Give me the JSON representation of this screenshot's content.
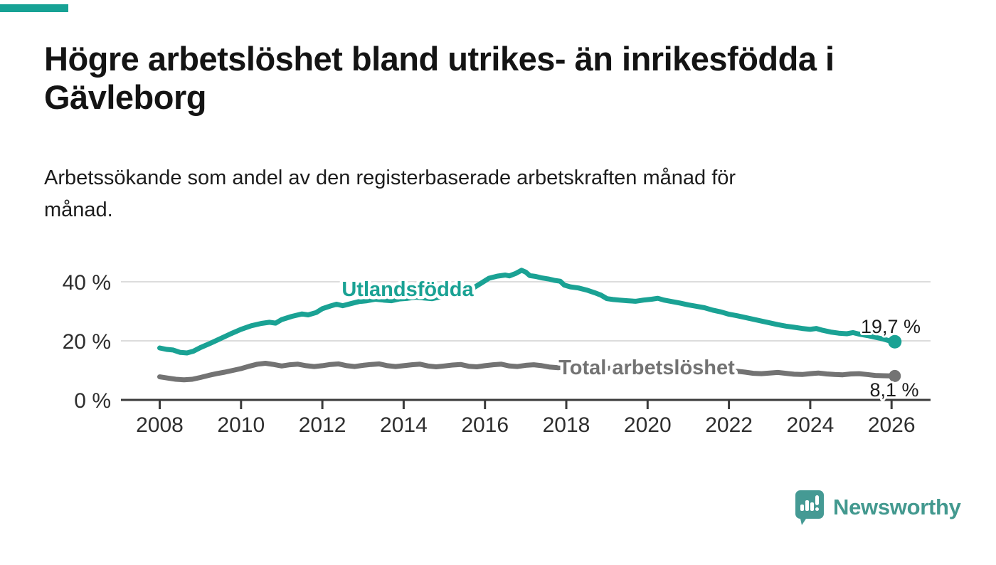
{
  "page": {
    "title": "Högre arbetslöshet bland utrikes- än inrikesfödda i\nGävleborg",
    "subtitle": "Arbetssökande som andel av den registerbaserade arbetskraften månad för\nmånad.",
    "accent_color": "#17A295",
    "background_color": "#FFFFFF"
  },
  "branding": {
    "logo_text": "Newsworthy",
    "logo_color": "#43998F",
    "logo_icon": "speech-bubble-bar-chart-icon"
  },
  "chart_data": {
    "type": "line",
    "x_unit": "decimal-year, monthly observations",
    "xlim": [
      2007.85,
      2026.55
    ],
    "ylim": [
      0,
      45
    ],
    "grid": "horizontal",
    "gridline_color": "#D7D7D7",
    "axis_color": "#3B3B3B",
    "tick_label_color": "#2E2E2E",
    "yticks": [
      {
        "value": 0,
        "label": "0 %"
      },
      {
        "value": 20,
        "label": "20 %"
      },
      {
        "value": 40,
        "label": "40 %"
      }
    ],
    "xticks": [
      {
        "value": 2008,
        "label": "2008"
      },
      {
        "value": 2010,
        "label": "2010"
      },
      {
        "value": 2012,
        "label": "2012"
      },
      {
        "value": 2014,
        "label": "2014"
      },
      {
        "value": 2016,
        "label": "2016"
      },
      {
        "value": 2018,
        "label": "2018"
      },
      {
        "value": 2020,
        "label": "2020"
      },
      {
        "value": 2022,
        "label": "2022"
      },
      {
        "value": 2024,
        "label": "2024"
      },
      {
        "value": 2026,
        "label": "2026"
      }
    ],
    "series": [
      {
        "name": "Utlandsfödda",
        "color": "#1AA294",
        "end_value": 19.7,
        "end_value_label": "19,7 %",
        "points": [
          [
            2008.0,
            17.6
          ],
          [
            2008.17,
            17.1
          ],
          [
            2008.33,
            16.9
          ],
          [
            2008.5,
            16.1
          ],
          [
            2008.67,
            15.9
          ],
          [
            2008.83,
            16.5
          ],
          [
            2009.0,
            17.7
          ],
          [
            2009.25,
            19.2
          ],
          [
            2009.5,
            20.8
          ],
          [
            2009.75,
            22.4
          ],
          [
            2010.0,
            23.9
          ],
          [
            2010.25,
            25.1
          ],
          [
            2010.5,
            25.9
          ],
          [
            2010.7,
            26.3
          ],
          [
            2010.85,
            26.0
          ],
          [
            2011.0,
            27.2
          ],
          [
            2011.25,
            28.3
          ],
          [
            2011.5,
            29.1
          ],
          [
            2011.65,
            28.8
          ],
          [
            2011.85,
            29.6
          ],
          [
            2012.0,
            30.9
          ],
          [
            2012.2,
            31.8
          ],
          [
            2012.35,
            32.4
          ],
          [
            2012.5,
            31.9
          ],
          [
            2012.7,
            32.6
          ],
          [
            2012.9,
            33.3
          ],
          [
            2013.1,
            33.6
          ],
          [
            2013.3,
            34.1
          ],
          [
            2013.5,
            33.8
          ],
          [
            2013.7,
            33.6
          ],
          [
            2013.9,
            34.2
          ],
          [
            2014.1,
            34.4
          ],
          [
            2014.3,
            34.8
          ],
          [
            2014.5,
            34.5
          ],
          [
            2014.7,
            34.3
          ],
          [
            2014.9,
            34.9
          ],
          [
            2015.1,
            35.3
          ],
          [
            2015.3,
            35.9
          ],
          [
            2015.5,
            36.6
          ],
          [
            2015.7,
            37.8
          ],
          [
            2015.9,
            39.5
          ],
          [
            2016.1,
            41.2
          ],
          [
            2016.3,
            41.9
          ],
          [
            2016.5,
            42.3
          ],
          [
            2016.6,
            42.0
          ],
          [
            2016.75,
            42.8
          ],
          [
            2016.9,
            43.9
          ],
          [
            2017.0,
            43.3
          ],
          [
            2017.1,
            42.1
          ],
          [
            2017.25,
            41.8
          ],
          [
            2017.4,
            41.3
          ],
          [
            2017.55,
            41.0
          ],
          [
            2017.7,
            40.5
          ],
          [
            2017.85,
            40.2
          ],
          [
            2017.95,
            38.9
          ],
          [
            2018.1,
            38.3
          ],
          [
            2018.3,
            37.9
          ],
          [
            2018.5,
            37.2
          ],
          [
            2018.7,
            36.3
          ],
          [
            2018.85,
            35.5
          ],
          [
            2019.0,
            34.3
          ],
          [
            2019.15,
            34.0
          ],
          [
            2019.3,
            33.8
          ],
          [
            2019.5,
            33.6
          ],
          [
            2019.7,
            33.4
          ],
          [
            2019.9,
            33.8
          ],
          [
            2020.1,
            34.1
          ],
          [
            2020.25,
            34.4
          ],
          [
            2020.4,
            33.8
          ],
          [
            2020.6,
            33.3
          ],
          [
            2020.8,
            32.8
          ],
          [
            2021.0,
            32.2
          ],
          [
            2021.2,
            31.7
          ],
          [
            2021.4,
            31.2
          ],
          [
            2021.6,
            30.4
          ],
          [
            2021.8,
            29.8
          ],
          [
            2022.0,
            29.0
          ],
          [
            2022.2,
            28.5
          ],
          [
            2022.4,
            27.9
          ],
          [
            2022.6,
            27.3
          ],
          [
            2022.8,
            26.7
          ],
          [
            2023.0,
            26.1
          ],
          [
            2023.2,
            25.5
          ],
          [
            2023.4,
            25.0
          ],
          [
            2023.6,
            24.6
          ],
          [
            2023.8,
            24.2
          ],
          [
            2024.0,
            23.9
          ],
          [
            2024.15,
            24.2
          ],
          [
            2024.3,
            23.6
          ],
          [
            2024.5,
            23.0
          ],
          [
            2024.7,
            22.6
          ],
          [
            2024.9,
            22.4
          ],
          [
            2025.05,
            22.8
          ],
          [
            2025.2,
            22.3
          ],
          [
            2025.4,
            21.8
          ],
          [
            2025.6,
            21.2
          ],
          [
            2025.8,
            20.6
          ],
          [
            2025.95,
            20.0
          ],
          [
            2026.08,
            19.7
          ]
        ]
      },
      {
        "name": "Total arbetslöshet",
        "color": "#737373",
        "end_value": 8.1,
        "end_value_label": "8,1 %",
        "points": [
          [
            2008.0,
            7.8
          ],
          [
            2008.2,
            7.4
          ],
          [
            2008.4,
            7.0
          ],
          [
            2008.6,
            6.8
          ],
          [
            2008.8,
            7.0
          ],
          [
            2009.0,
            7.6
          ],
          [
            2009.2,
            8.3
          ],
          [
            2009.4,
            8.9
          ],
          [
            2009.6,
            9.4
          ],
          [
            2009.8,
            10.0
          ],
          [
            2010.0,
            10.6
          ],
          [
            2010.2,
            11.4
          ],
          [
            2010.4,
            12.1
          ],
          [
            2010.6,
            12.4
          ],
          [
            2010.8,
            12.0
          ],
          [
            2011.0,
            11.5
          ],
          [
            2011.2,
            11.9
          ],
          [
            2011.4,
            12.1
          ],
          [
            2011.6,
            11.6
          ],
          [
            2011.8,
            11.3
          ],
          [
            2012.0,
            11.6
          ],
          [
            2012.2,
            12.0
          ],
          [
            2012.4,
            12.2
          ],
          [
            2012.6,
            11.6
          ],
          [
            2012.8,
            11.3
          ],
          [
            2013.0,
            11.7
          ],
          [
            2013.2,
            12.0
          ],
          [
            2013.4,
            12.2
          ],
          [
            2013.6,
            11.6
          ],
          [
            2013.8,
            11.3
          ],
          [
            2014.0,
            11.6
          ],
          [
            2014.2,
            11.9
          ],
          [
            2014.4,
            12.1
          ],
          [
            2014.6,
            11.5
          ],
          [
            2014.8,
            11.2
          ],
          [
            2015.0,
            11.5
          ],
          [
            2015.2,
            11.8
          ],
          [
            2015.4,
            12.0
          ],
          [
            2015.6,
            11.4
          ],
          [
            2015.8,
            11.2
          ],
          [
            2016.0,
            11.6
          ],
          [
            2016.2,
            11.9
          ],
          [
            2016.4,
            12.1
          ],
          [
            2016.6,
            11.5
          ],
          [
            2016.8,
            11.3
          ],
          [
            2017.0,
            11.7
          ],
          [
            2017.2,
            11.9
          ],
          [
            2017.4,
            11.6
          ],
          [
            2017.6,
            11.1
          ],
          [
            2017.8,
            10.9
          ],
          [
            2018.0,
            11.2
          ],
          [
            2018.2,
            11.4
          ],
          [
            2018.4,
            11.1
          ],
          [
            2018.6,
            10.6
          ],
          [
            2018.8,
            10.4
          ],
          [
            2019.0,
            10.7
          ],
          [
            2019.2,
            10.9
          ],
          [
            2019.4,
            10.5
          ],
          [
            2019.6,
            10.1
          ],
          [
            2019.8,
            10.0
          ],
          [
            2020.0,
            10.4
          ],
          [
            2020.2,
            11.2
          ],
          [
            2020.4,
            11.5
          ],
          [
            2020.6,
            11.2
          ],
          [
            2020.8,
            10.9
          ],
          [
            2021.0,
            10.8
          ],
          [
            2021.2,
            10.6
          ],
          [
            2021.4,
            10.3
          ],
          [
            2021.6,
            9.9
          ],
          [
            2021.8,
            9.6
          ],
          [
            2022.0,
            9.6
          ],
          [
            2022.2,
            9.7
          ],
          [
            2022.4,
            9.4
          ],
          [
            2022.6,
            9.0
          ],
          [
            2022.8,
            8.9
          ],
          [
            2023.0,
            9.1
          ],
          [
            2023.2,
            9.3
          ],
          [
            2023.4,
            9.0
          ],
          [
            2023.6,
            8.7
          ],
          [
            2023.8,
            8.6
          ],
          [
            2024.0,
            8.9
          ],
          [
            2024.2,
            9.1
          ],
          [
            2024.4,
            8.8
          ],
          [
            2024.6,
            8.6
          ],
          [
            2024.8,
            8.5
          ],
          [
            2025.0,
            8.8
          ],
          [
            2025.2,
            8.9
          ],
          [
            2025.4,
            8.6
          ],
          [
            2025.6,
            8.3
          ],
          [
            2025.8,
            8.2
          ],
          [
            2026.08,
            8.1
          ]
        ]
      }
    ]
  }
}
